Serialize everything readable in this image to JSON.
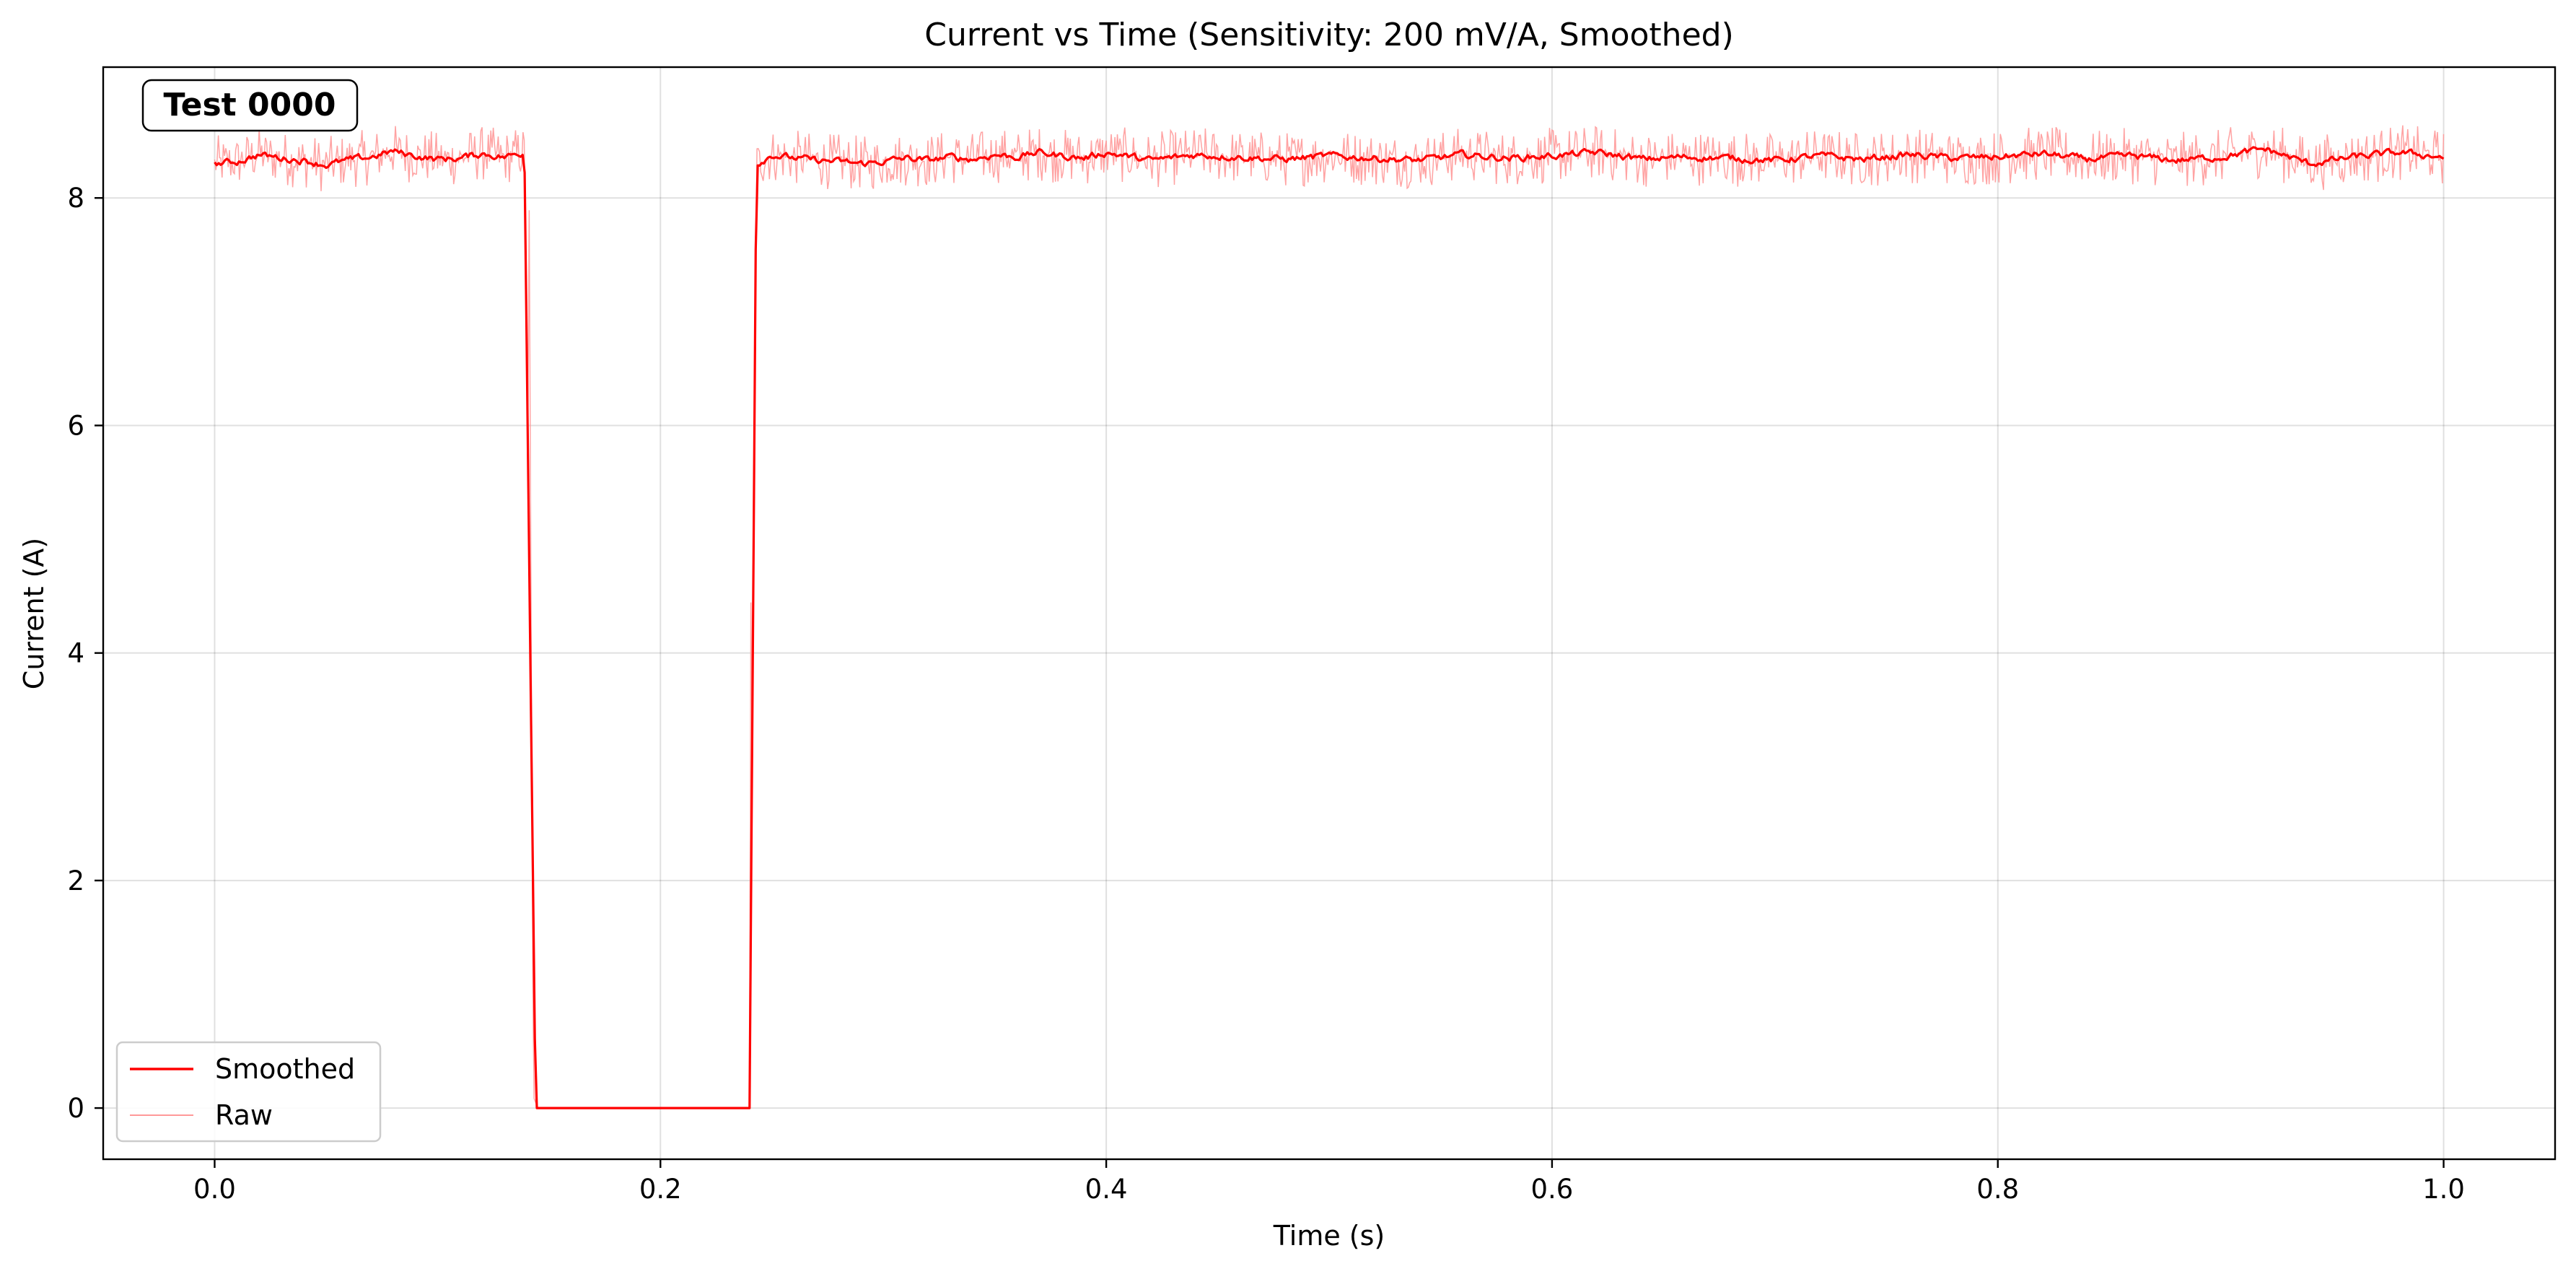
{
  "chart_data": {
    "type": "line",
    "title": "Current vs Time (Sensitivity: 200 mV/A, Smoothed)",
    "xlabel": "Time (s)",
    "ylabel": "Current (A)",
    "xlim": [
      -0.05,
      1.05
    ],
    "ylim": [
      -0.45,
      9.15
    ],
    "x_ticks": [
      0.0,
      0.2,
      0.4,
      0.6,
      0.8,
      1.0
    ],
    "x_tick_labels": [
      "0.0",
      "0.2",
      "0.4",
      "0.6",
      "0.8",
      "1.0"
    ],
    "y_ticks": [
      0,
      2,
      4,
      6,
      8
    ],
    "y_tick_labels": [
      "0",
      "2",
      "4",
      "6",
      "8"
    ],
    "grid": true,
    "legend_position": "lower-left",
    "annotation": "Test 0000",
    "series": [
      {
        "name": "Smoothed",
        "color": "#ff0000",
        "style": "solid-thick",
        "x": [
          0.0,
          0.01,
          0.02,
          0.03,
          0.04,
          0.05,
          0.06,
          0.07,
          0.08,
          0.09,
          0.1,
          0.11,
          0.12,
          0.13,
          0.139,
          0.144,
          0.15,
          0.24,
          0.243,
          0.25,
          0.26,
          0.27,
          0.28,
          0.29,
          0.3,
          0.31,
          0.32,
          0.33,
          0.34,
          0.35,
          0.36,
          0.37,
          0.38,
          0.39,
          0.4,
          0.42,
          0.44,
          0.46,
          0.48,
          0.5,
          0.52,
          0.54,
          0.56,
          0.58,
          0.6,
          0.62,
          0.64,
          0.66,
          0.68,
          0.7,
          0.72,
          0.74,
          0.76,
          0.78,
          0.8,
          0.82,
          0.84,
          0.86,
          0.88,
          0.9,
          0.92,
          0.94,
          0.96,
          0.98,
          1.0
        ],
        "values": [
          8.3,
          8.32,
          8.38,
          8.35,
          8.33,
          8.29,
          8.33,
          8.36,
          8.41,
          8.37,
          8.34,
          8.35,
          8.39,
          8.36,
          8.4,
          0.0,
          0.0,
          0.0,
          8.3,
          8.38,
          8.35,
          8.33,
          8.32,
          8.3,
          8.32,
          8.35,
          8.33,
          8.36,
          8.34,
          8.38,
          8.36,
          8.4,
          8.37,
          8.35,
          8.4,
          8.33,
          8.38,
          8.36,
          8.34,
          8.37,
          8.35,
          8.33,
          8.38,
          8.35,
          8.37,
          8.4,
          8.34,
          8.36,
          8.35,
          8.33,
          8.37,
          8.34,
          8.38,
          8.35,
          8.36,
          8.39,
          8.34,
          8.37,
          8.33,
          8.36,
          8.43,
          8.3,
          8.36,
          8.4,
          8.36
        ]
      },
      {
        "name": "Raw",
        "color": "#ff9999",
        "style": "solid-thin",
        "x": [
          0.0,
          0.14,
          0.141,
          0.143,
          0.145,
          0.24,
          0.241,
          0.242,
          1.0
        ],
        "values": [
          8.35,
          8.35,
          8.35,
          0.1,
          0.0,
          0.0,
          8.0,
          8.35,
          8.35
        ],
        "noise_amplitude": 0.25
      }
    ]
  }
}
